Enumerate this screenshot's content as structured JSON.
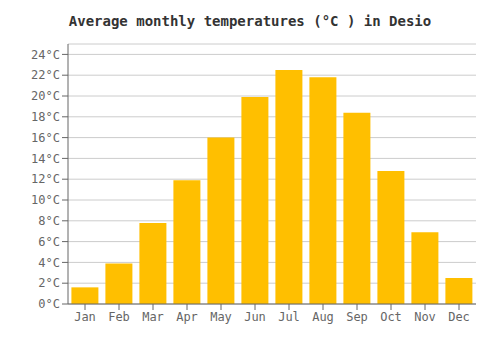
{
  "chart_data": {
    "type": "bar",
    "title": "Average monthly temperatures (°C ) in Desio",
    "categories": [
      "Jan",
      "Feb",
      "Mar",
      "Apr",
      "May",
      "Jun",
      "Jul",
      "Aug",
      "Sep",
      "Oct",
      "Nov",
      "Dec"
    ],
    "values": [
      1.6,
      3.9,
      7.8,
      11.9,
      16.0,
      19.9,
      22.5,
      21.8,
      18.4,
      12.8,
      6.9,
      2.5
    ],
    "color": "#FFBF00",
    "ylim": [
      0,
      25
    ],
    "yticks": [
      {
        "value": 0,
        "label": "0°C"
      },
      {
        "value": 2,
        "label": "2°C"
      },
      {
        "value": 4,
        "label": "4°C"
      },
      {
        "value": 6,
        "label": "6°C"
      },
      {
        "value": 8,
        "label": "8°C"
      },
      {
        "value": 10,
        "label": "10°C"
      },
      {
        "value": 12,
        "label": "12°C"
      },
      {
        "value": 14,
        "label": "14°C"
      },
      {
        "value": 16,
        "label": "16°C"
      },
      {
        "value": 18,
        "label": "18°C"
      },
      {
        "value": 20,
        "label": "20°C"
      },
      {
        "value": 22,
        "label": "22°C"
      },
      {
        "value": 24,
        "label": "24°C"
      }
    ],
    "grid": true
  }
}
